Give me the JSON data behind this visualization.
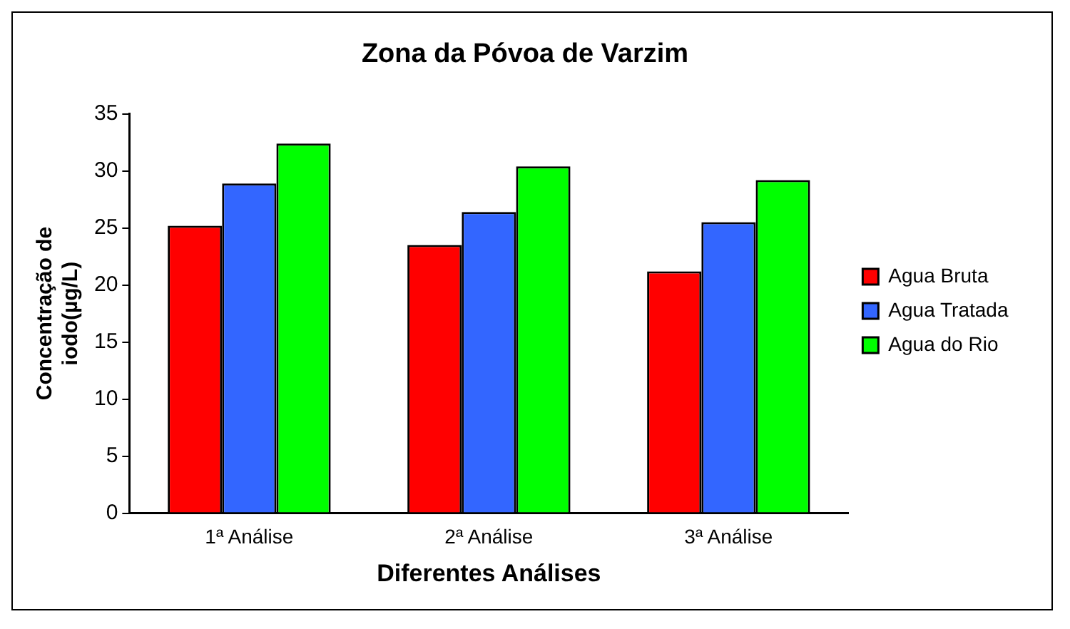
{
  "chart_data": {
    "type": "bar",
    "title": "Zona da Póvoa de Varzim",
    "xlabel": "Diferentes Análises",
    "ylabel": "Concentração de iodo(µg/L)",
    "categories": [
      "1ª Análise",
      "2ª Análise",
      "3ª Análise"
    ],
    "series": [
      {
        "name": "Agua Bruta",
        "color": "#ff0000",
        "values": [
          25.2,
          23.5,
          21.2
        ]
      },
      {
        "name": "Agua Tratada",
        "color": "#3366ff",
        "values": [
          28.9,
          26.4,
          25.5
        ]
      },
      {
        "name": "Agua do Rio",
        "color": "#00ff00",
        "values": [
          32.4,
          30.4,
          29.2
        ]
      }
    ],
    "ylim": [
      0,
      35
    ],
    "yticks": [
      0,
      5,
      10,
      15,
      20,
      25,
      30,
      35
    ],
    "grid": false,
    "legend": "right"
  }
}
